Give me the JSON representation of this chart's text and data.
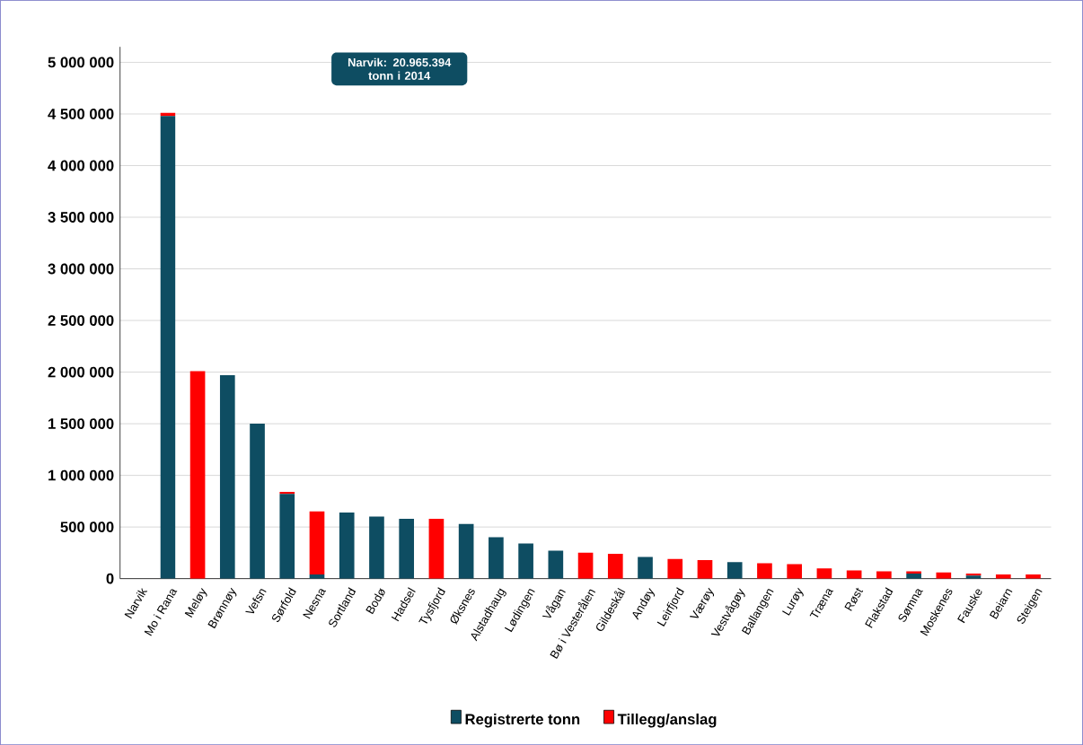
{
  "chart_data": {
    "type": "bar",
    "stacked": true,
    "categories": [
      "Narvik",
      "Mo i Rana",
      "Meløy",
      "Brønnøy",
      "Vefsn",
      "Sørfold",
      "Nesna",
      "Sortland",
      "Bodø",
      "Hadsel",
      "Tysfjord",
      "Øksnes",
      "Alstadhaug",
      "Lødingen",
      "Vågan",
      "Bø i Vesterålen",
      "Gildeskål",
      "Andøy",
      "Leirfjord",
      "Værøy",
      "Vestvågøy",
      "Ballangen",
      "Lurøy",
      "Træna",
      "Røst",
      "Flakstad",
      "Sømna",
      "Moskenes",
      "Fauske",
      "Beiarn",
      "Steigen"
    ],
    "series": [
      {
        "name": "Registrerte tonn",
        "color": "#0e4d62",
        "values": [
          null,
          4480000,
          0,
          1970000,
          1500000,
          820000,
          40000,
          640000,
          600000,
          580000,
          0,
          530000,
          400000,
          340000,
          270000,
          0,
          0,
          210000,
          0,
          0,
          160000,
          0,
          0,
          0,
          0,
          0,
          50000,
          0,
          30000,
          0,
          0
        ]
      },
      {
        "name": "Tillegg/anslag",
        "color": "#ff0000",
        "values": [
          null,
          30000,
          2010000,
          0,
          0,
          20000,
          610000,
          0,
          0,
          0,
          580000,
          0,
          0,
          0,
          0,
          250000,
          240000,
          0,
          190000,
          180000,
          0,
          150000,
          140000,
          100000,
          80000,
          70000,
          20000,
          60000,
          20000,
          40000,
          40000
        ]
      }
    ],
    "ylim": [
      0,
      5000000
    ],
    "yticks": [
      {
        "value": 0,
        "label": "0"
      },
      {
        "value": 500000,
        "label": "500 000"
      },
      {
        "value": 1000000,
        "label": "1 000 000"
      },
      {
        "value": 1500000,
        "label": "1 500 000"
      },
      {
        "value": 2000000,
        "label": "2 000 000"
      },
      {
        "value": 2500000,
        "label": "2 500 000"
      },
      {
        "value": 3000000,
        "label": "3 000 000"
      },
      {
        "value": 3500000,
        "label": "3 500 000"
      },
      {
        "value": 4000000,
        "label": "4 000 000"
      },
      {
        "value": 4500000,
        "label": "4 500 000"
      },
      {
        "value": 5000000,
        "label": "5 000 000"
      }
    ],
    "annotations": [
      "Narvik: 20.965.394 tonn i 2014"
    ],
    "grid": "y",
    "legend": "bottom"
  }
}
